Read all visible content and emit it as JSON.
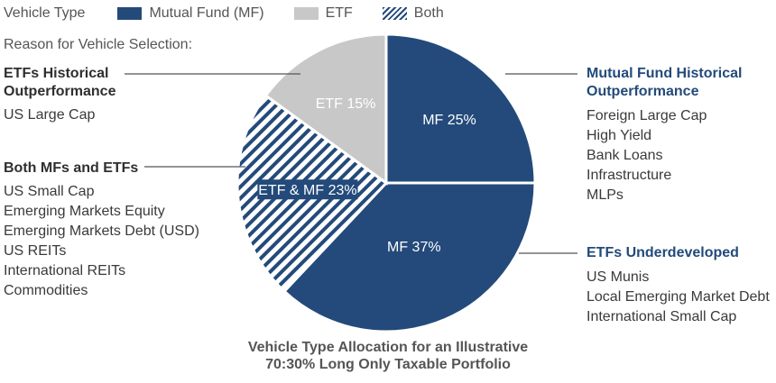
{
  "legend": {
    "title": "Vehicle Type",
    "items": [
      {
        "label": "Mutual Fund (MF)",
        "color": "#234a7a"
      },
      {
        "label": "ETF",
        "color": "#c8c8c8"
      },
      {
        "label": "Both",
        "color": "#234a7a"
      }
    ]
  },
  "reason_label": "Reason for Vehicle Selection:",
  "groups": {
    "etf_outperf": {
      "title": [
        "ETFs Historical",
        "Outperformance"
      ],
      "items": [
        "US Large Cap"
      ]
    },
    "both": {
      "title": [
        "Both MFs and ETFs"
      ],
      "items": [
        "US Small Cap",
        "Emerging Markets Equity",
        "Emerging Markets Debt (USD)",
        "US REITs",
        "International REITs",
        "Commodities"
      ]
    },
    "mf_outperf": {
      "title": [
        "Mutual Fund Historical",
        "Outperformance"
      ],
      "items": [
        "Foreign Large Cap",
        "High Yield",
        "Bank Loans",
        "Infrastructure",
        "MLPs"
      ]
    },
    "etf_underdev": {
      "title": [
        "ETFs Underdeveloped"
      ],
      "items": [
        "US Munis",
        "Local Emerging Market Debt",
        "International Small Cap"
      ]
    }
  },
  "caption": [
    "Vehicle Type Allocation for an Illustrative",
    "70:30% Long Only Taxable Portfolio"
  ],
  "chart_data": {
    "type": "pie",
    "slices": [
      {
        "label": "MF 25%",
        "category": "Mutual Fund (MF)",
        "value": 25,
        "color": "#234a7a",
        "pattern": "solid"
      },
      {
        "label": "MF 37%",
        "category": "Mutual Fund (MF)",
        "value": 37,
        "color": "#234a7a",
        "pattern": "solid"
      },
      {
        "label": "ETF & MF 23%",
        "category": "Both",
        "value": 23,
        "color": "#234a7a",
        "pattern": "hatched"
      },
      {
        "label": "ETF 15%",
        "category": "ETF",
        "value": 15,
        "color": "#c8c8c8",
        "pattern": "solid"
      }
    ],
    "legend_position": "top-left"
  }
}
